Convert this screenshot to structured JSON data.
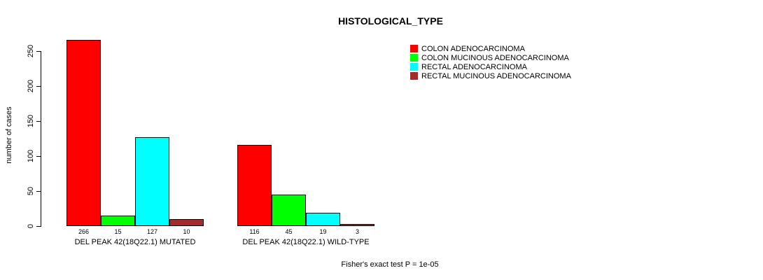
{
  "chart_data": {
    "type": "bar",
    "title": "HISTOLOGICAL_TYPE",
    "ylabel": "number of cases",
    "ylim": [
      0,
      250
    ],
    "yticks": [
      0,
      50,
      100,
      150,
      200,
      250
    ],
    "grid": false,
    "legend_position": "top-right",
    "categories": [
      "DEL PEAK 42(18Q22.1) MUTATED",
      "DEL PEAK 42(18Q22.1) WILD-TYPE"
    ],
    "series": [
      {
        "name": "COLON ADENOCARCINOMA",
        "color": "#FF0000",
        "values": [
          266,
          116
        ]
      },
      {
        "name": "COLON MUCINOUS ADENOCARCINOMA",
        "color": "#00FF00",
        "values": [
          15,
          45
        ]
      },
      {
        "name": "RECTAL ADENOCARCINOMA",
        "color": "#00FFFF",
        "values": [
          127,
          19
        ]
      },
      {
        "name": "RECTAL MUCINOUS ADENOCARCINOMA",
        "color": "#A52A2A",
        "values": [
          10,
          3
        ]
      }
    ],
    "bar_value_labels": [
      [
        266,
        15,
        127,
        10
      ],
      [
        116,
        45,
        19,
        3
      ]
    ],
    "footnote": "Fisher's exact test P = 1e-05"
  }
}
